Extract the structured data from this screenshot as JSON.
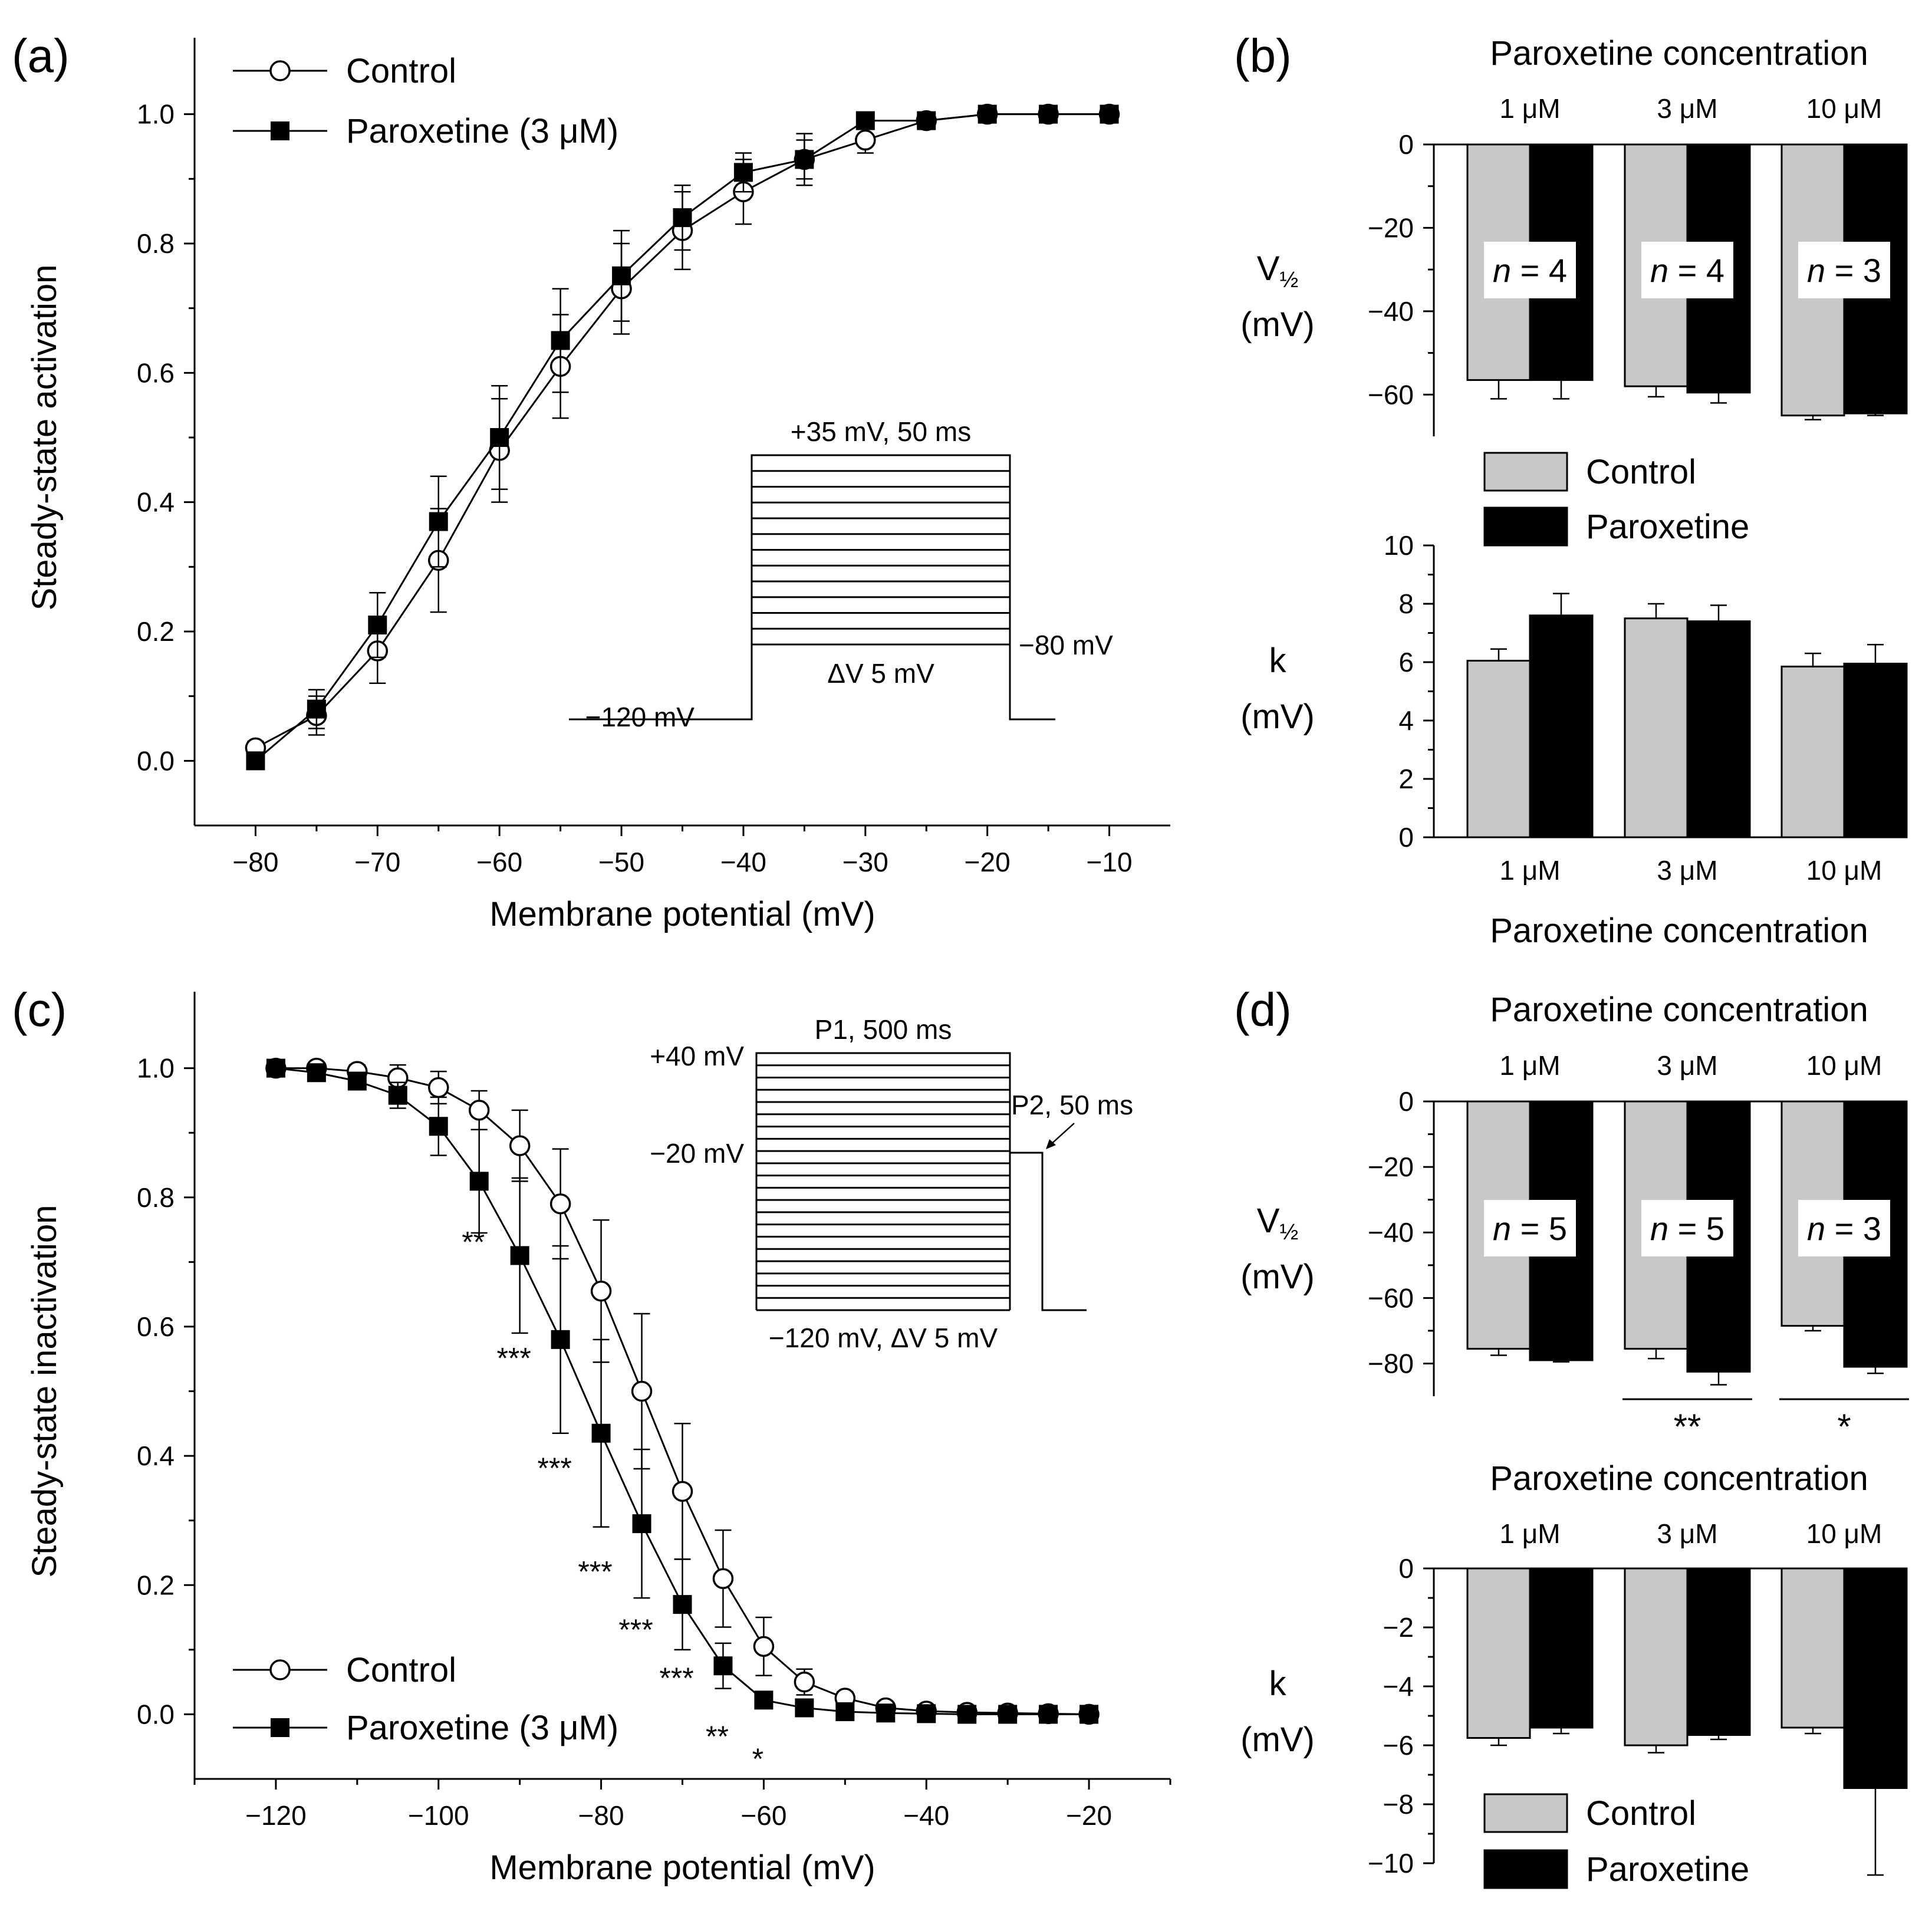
{
  "chart_data": [
    {
      "panel": "(a)",
      "type": "line",
      "xlabel": "Membrane potential (mV)",
      "ylabel": "Steady-state activation",
      "xlim": [
        -85,
        -5
      ],
      "ylim": [
        -0.1,
        1.1
      ],
      "xticks": [
        -80,
        -70,
        -60,
        -50,
        -40,
        -30,
        -20,
        -10
      ],
      "xtick_labels": [
        "−80",
        "−70",
        "−60",
        "−50",
        "−40",
        "−30",
        "−20",
        "−10"
      ],
      "yticks": [
        0.0,
        0.2,
        0.4,
        0.6,
        0.8,
        1.0
      ],
      "ytick_labels": [
        "0.0",
        "0.2",
        "0.4",
        "0.6",
        "0.8",
        "1.0"
      ],
      "legend": [
        "Control",
        "Paroxetine (3 μM)"
      ],
      "x": [
        -80,
        -75,
        -70,
        -65,
        -60,
        -55,
        -50,
        -45,
        -40,
        -35,
        -30,
        -25,
        -20,
        -15,
        -10
      ],
      "series": [
        {
          "name": "Control",
          "marker": "open-circle",
          "values": [
            0.02,
            0.07,
            0.17,
            0.31,
            0.48,
            0.61,
            0.73,
            0.82,
            0.88,
            0.93,
            0.96,
            0.99,
            1.0,
            1.0,
            1.0
          ],
          "errors": [
            0.01,
            0.03,
            0.05,
            0.08,
            0.08,
            0.08,
            0.07,
            0.06,
            0.05,
            0.03,
            0.02,
            0.01,
            0.01,
            0.005,
            0.0
          ]
        },
        {
          "name": "Paroxetine (3 μM)",
          "marker": "filled-square",
          "values": [
            0.0,
            0.08,
            0.21,
            0.37,
            0.5,
            0.65,
            0.75,
            0.84,
            0.91,
            0.93,
            0.99,
            0.99,
            1.0,
            1.0,
            1.0
          ],
          "errors": [
            0.01,
            0.03,
            0.05,
            0.07,
            0.08,
            0.08,
            0.07,
            0.05,
            0.03,
            0.04,
            0.01,
            0.01,
            0.0,
            0.0,
            0.0
          ]
        }
      ],
      "inset": {
        "top_label": "+35 mV, 50 ms",
        "step_label": "ΔV 5 mV",
        "hold_label": "−120 mV",
        "tail_label": "−80 mV",
        "num_steps": 12
      }
    },
    {
      "panel": "(b)",
      "type": "bar",
      "top_title": "Paroxetine concentration",
      "bottom_title": "Paroxetine concentration",
      "categories": [
        "1 μM",
        "3 μM",
        "10 μM"
      ],
      "legend": [
        "Control",
        "Paroxetine"
      ],
      "n_labels": [
        "4",
        "4",
        "3"
      ],
      "n_prefix": "n",
      "n_eq": " = ",
      "upper": {
        "ylabel_main": "V",
        "ylabel_sub": "½",
        "ylabel_unit": "(mV)",
        "ylim": [
          -70,
          0
        ],
        "yticks": [
          0,
          -20,
          -40,
          -60
        ],
        "ytick_labels": [
          "0",
          "−20",
          "−40",
          "−60"
        ],
        "series": [
          {
            "name": "Control",
            "values": [
              -56.5,
              -58.0,
              -65.0
            ],
            "errors": [
              4.5,
              2.5,
              1.0
            ]
          },
          {
            "name": "Paroxetine",
            "values": [
              -56.5,
              -59.5,
              -64.5
            ],
            "errors": [
              4.5,
              2.5,
              0.5
            ]
          }
        ]
      },
      "lower": {
        "ylabel_main": "k",
        "ylabel_unit": "(mV)",
        "ylim": [
          0,
          10
        ],
        "yticks": [
          0,
          2,
          4,
          6,
          8,
          10
        ],
        "ytick_labels": [
          "0",
          "2",
          "4",
          "6",
          "8",
          "10"
        ],
        "series": [
          {
            "name": "Control",
            "values": [
              6.05,
              7.5,
              5.85
            ],
            "errors": [
              0.4,
              0.5,
              0.45
            ]
          },
          {
            "name": "Paroxetine",
            "values": [
              7.6,
              7.4,
              5.95
            ],
            "errors": [
              0.75,
              0.55,
              0.65
            ]
          }
        ]
      }
    },
    {
      "panel": "(c)",
      "type": "line",
      "xlabel": "Membrane potential (mV)",
      "ylabel": "Steady-state inactivation",
      "xlim": [
        -130,
        -10
      ],
      "ylim": [
        -0.1,
        1.1
      ],
      "xticks": [
        -120,
        -100,
        -80,
        -60,
        -40,
        -20
      ],
      "xtick_labels": [
        "−120",
        "−100",
        "−80",
        "−60",
        "−40",
        "−20"
      ],
      "yticks": [
        0.0,
        0.2,
        0.4,
        0.6,
        0.8,
        1.0
      ],
      "ytick_labels": [
        "0.0",
        "0.2",
        "0.4",
        "0.6",
        "0.8",
        "1.0"
      ],
      "legend": [
        "Control",
        "Paroxetine (3 μM)"
      ],
      "x": [
        -120,
        -115,
        -110,
        -105,
        -100,
        -95,
        -90,
        -85,
        -80,
        -75,
        -70,
        -65,
        -60,
        -55,
        -50,
        -45,
        -40,
        -35,
        -30,
        -25,
        -20
      ],
      "series": [
        {
          "name": "Control",
          "marker": "open-circle",
          "values": [
            1.0,
            1.0,
            0.995,
            0.985,
            0.97,
            0.935,
            0.88,
            0.79,
            0.655,
            0.5,
            0.345,
            0.21,
            0.105,
            0.05,
            0.025,
            0.01,
            0.005,
            0.003,
            0.002,
            0.001,
            0.0
          ],
          "errors": [
            0.0,
            0.005,
            0.01,
            0.02,
            0.025,
            0.03,
            0.055,
            0.085,
            0.11,
            0.12,
            0.105,
            0.075,
            0.045,
            0.02,
            0.01,
            0.005,
            0.0,
            0.0,
            0.0,
            0.0,
            0.0
          ]
        },
        {
          "name": "Paroxetine (3 μM)",
          "marker": "filled-square",
          "values": [
            1.0,
            0.993,
            0.98,
            0.958,
            0.91,
            0.825,
            0.71,
            0.58,
            0.435,
            0.295,
            0.17,
            0.075,
            0.022,
            0.01,
            0.004,
            0.002,
            0.001,
            0.0,
            0.0,
            0.0,
            0.0
          ],
          "errors": [
            0.0,
            0.005,
            0.01,
            0.02,
            0.045,
            0.08,
            0.12,
            0.145,
            0.145,
            0.115,
            0.07,
            0.035,
            0.01,
            0.005,
            0.0,
            0.0,
            0.0,
            0.0,
            0.0,
            0.0,
            0.0
          ]
        }
      ],
      "significance": [
        {
          "x": -95,
          "label": "**",
          "y": 0.73
        },
        {
          "x": -90,
          "label": "***",
          "y": 0.55
        },
        {
          "x": -85,
          "label": "***",
          "y": 0.38
        },
        {
          "x": -80,
          "label": "***",
          "y": 0.22
        },
        {
          "x": -75,
          "label": "***",
          "y": 0.13
        },
        {
          "x": -70,
          "label": "***",
          "y": 0.055
        },
        {
          "x": -65,
          "label": "**",
          "y": -0.035
        },
        {
          "x": -60,
          "label": "*",
          "y": -0.07
        }
      ],
      "inset": {
        "p1_label": "P1, 500 ms",
        "p2_label": "P2, 50 ms",
        "top_label": "+40 mV",
        "p2_level_label": "−20 mV",
        "bottom_label": "−120 mV, ΔV 5 mV",
        "num_steps": 21
      }
    },
    {
      "panel": "(d)",
      "type": "bar",
      "categories": [
        "1 μM",
        "3 μM",
        "10 μM"
      ],
      "legend": [
        "Control",
        "Paroxetine"
      ],
      "upper": {
        "title": "Paroxetine concentration",
        "ylabel_main": "V",
        "ylabel_sub": "½",
        "ylabel_unit": "(mV)",
        "ylim": [
          -90,
          0
        ],
        "yticks": [
          0,
          -20,
          -40,
          -60,
          -80
        ],
        "ytick_labels": [
          "0",
          "−20",
          "−40",
          "−60",
          "−80"
        ],
        "n_labels": [
          "5",
          "5",
          "3"
        ],
        "series": [
          {
            "name": "Control",
            "values": [
              -75.5,
              -75.5,
              -68.5
            ],
            "errors": [
              2.0,
              3.0,
              1.5
            ]
          },
          {
            "name": "Paroxetine",
            "values": [
              -79.0,
              -82.5,
              -81.0
            ],
            "errors": [
              0.5,
              4.0,
              2.0
            ]
          }
        ],
        "significance": [
          {
            "category": 1,
            "label": "**"
          },
          {
            "category": 2,
            "label": "*"
          }
        ]
      },
      "lower": {
        "title": "Paroxetine concentration",
        "ylabel_main": "k",
        "ylabel_unit": "(mV)",
        "ylim": [
          -10,
          0
        ],
        "yticks": [
          0,
          -2,
          -4,
          -6,
          -8,
          -10
        ],
        "ytick_labels": [
          "0",
          "−2",
          "−4",
          "−6",
          "−8",
          "−10"
        ],
        "series": [
          {
            "name": "Control",
            "values": [
              -5.75,
              -6.0,
              -5.4
            ],
            "errors": [
              0.25,
              0.25,
              0.2
            ]
          },
          {
            "name": "Paroxetine",
            "values": [
              -5.4,
              -5.65,
              -7.45
            ],
            "errors": [
              0.2,
              0.15,
              2.95
            ]
          }
        ]
      }
    }
  ],
  "colors": {
    "control_bar": "#c8c8c8",
    "paroxetine_bar": "#000000",
    "line": "#000000"
  }
}
